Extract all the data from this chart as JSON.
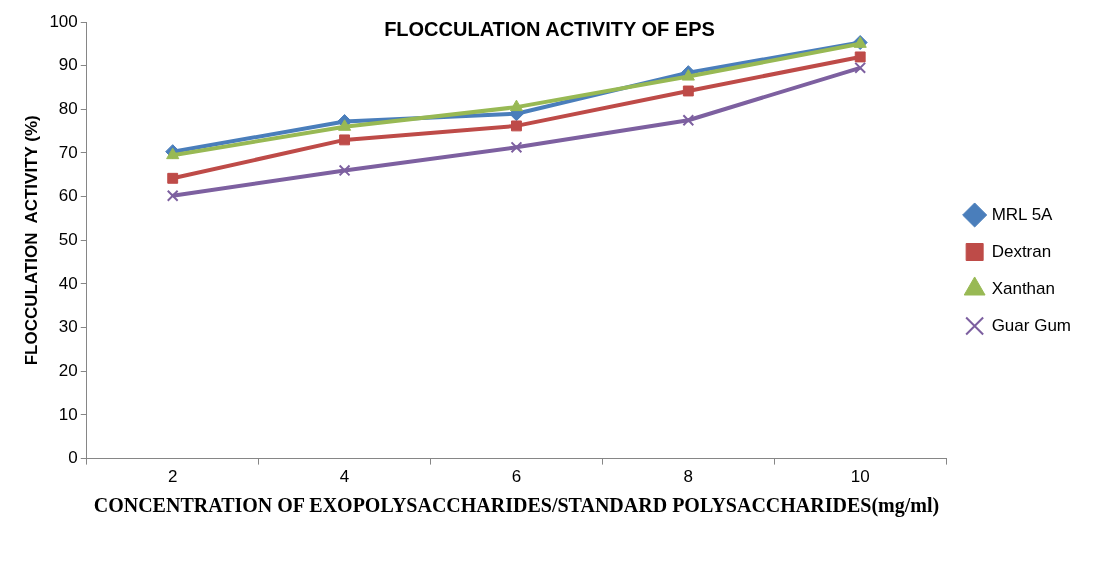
{
  "chart_data": {
    "type": "line",
    "title": "FLOCCULATION ACTIVITY OF EPS",
    "xlabel": "CONCENTRATION OF EXOPOLYSACCHARIDES/STANDARD POLYSACCHARIDES(mg/ml)",
    "ylabel": "FLOCCULATION  ACTIVITY (%)",
    "categories": [
      "2",
      "4",
      "6",
      "8",
      "10"
    ],
    "series": [
      {
        "name": "MRL 5A",
        "color": "#4a7ebb",
        "marker": "diamond",
        "values": [
          70.3,
          77.2,
          79,
          88.4,
          95.3
        ]
      },
      {
        "name": "Dextran",
        "color": "#be4b48",
        "marker": "square",
        "values": [
          64.2,
          73,
          76.2,
          84.2,
          92
        ]
      },
      {
        "name": "Xanthan",
        "color": "#98b954",
        "marker": "triangle",
        "values": [
          69.5,
          76,
          80.5,
          87.5,
          95
        ]
      },
      {
        "name": "Guar Gum",
        "color": "#7d60a0",
        "marker": "cross",
        "values": [
          60.2,
          66,
          71.3,
          77.5,
          89.5
        ]
      }
    ],
    "ylim": [
      0,
      100
    ],
    "yticks": [
      0,
      10,
      20,
      30,
      40,
      50,
      60,
      70,
      80,
      90,
      100
    ],
    "grid": false,
    "legend": "right",
    "line_style": "solid"
  }
}
